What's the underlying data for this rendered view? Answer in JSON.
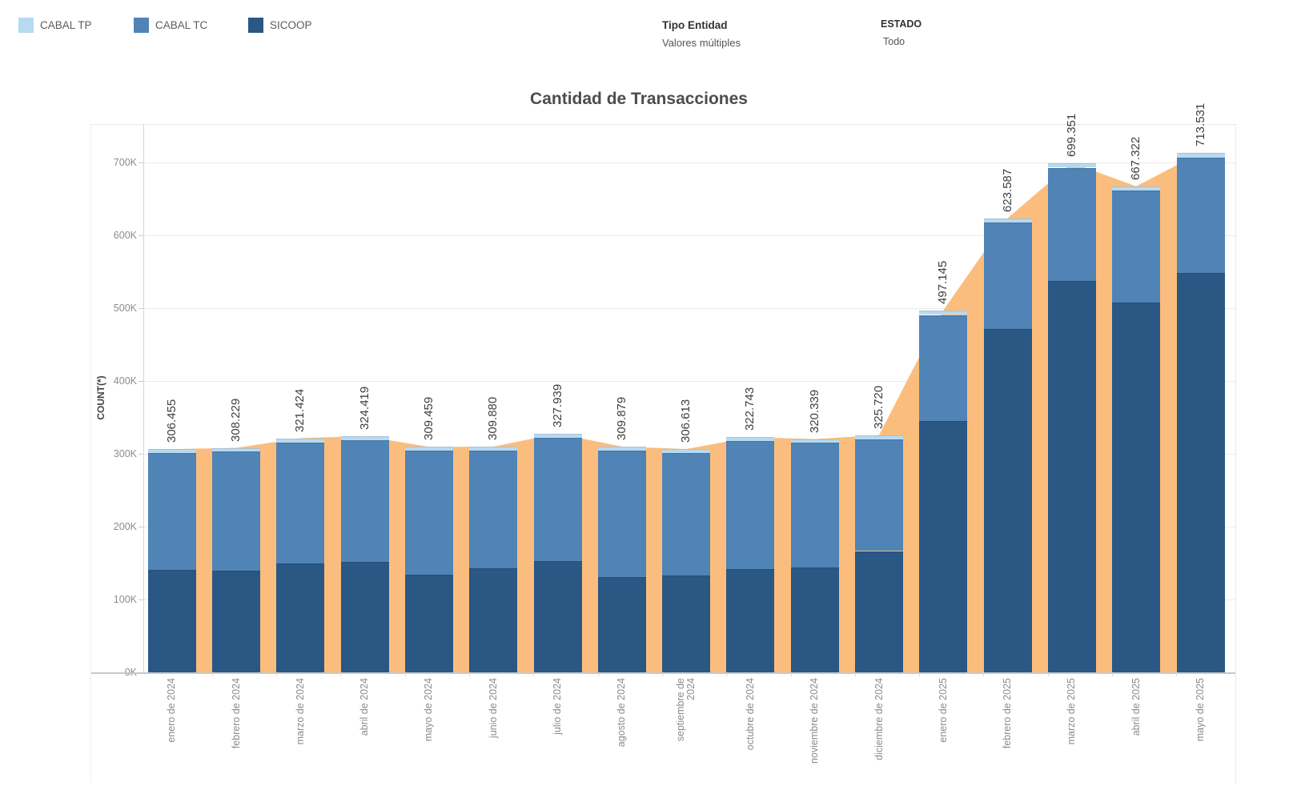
{
  "header": {
    "legend": {
      "items": [
        {
          "label": "CABAL TP",
          "color": "#B6DAF2"
        },
        {
          "label": "CABAL TC",
          "color": "#5083B6"
        },
        {
          "label": "SICOOP",
          "color": "#2A5783"
        }
      ]
    },
    "filters": [
      {
        "title": "Tipo Entidad",
        "value": "Valores múltiples"
      },
      {
        "title": "ESTADO",
        "value": "Todo"
      }
    ]
  },
  "chart_data": {
    "type": "bar",
    "stacked": true,
    "title": "Cantidad de Transacciones",
    "xlabel": "",
    "ylabel": "COUNT(*)",
    "ylim": [
      0,
      752000
    ],
    "yticks": [
      "0K",
      "100K",
      "200K",
      "300K",
      "400K",
      "500K",
      "600K",
      "700K"
    ],
    "ytick_values": [
      0,
      100000,
      200000,
      300000,
      400000,
      500000,
      600000,
      700000
    ],
    "grid": "horizontal light gray",
    "legend_position": "top-left",
    "categories": [
      "enero de 2024",
      "febrero de 2024",
      "marzo de 2024",
      "abril de 2024",
      "mayo de 2024",
      "junio de 2024",
      "julio de 2024",
      "agosto de 2024",
      "septiembre de\n2024",
      "octubre de 2024",
      "noviembre de 2024",
      "diciembre de 2024",
      "enero de 2025",
      "febrero de 2025",
      "marzo de 2025",
      "abril de 2025",
      "mayo de 2025"
    ],
    "stack_order_bottom_to_top": [
      "SICOOP",
      "CABAL TC",
      "CABAL TP"
    ],
    "series": [
      {
        "name": "SICOOP",
        "color": "#2A5783",
        "values": [
          141000,
          140000,
          150000,
          152000,
          134500,
          143000,
          153000,
          131000,
          133400,
          142000,
          144400,
          166500,
          345000,
          472000,
          537000,
          508000,
          548000
        ]
      },
      {
        "name": "CABAL TC",
        "color": "#5083B6",
        "values": [
          160455,
          163229,
          165924,
          166919,
          169959,
          161880,
          169439,
          173879,
          168213,
          175943,
          171139,
          153720,
          145645,
          145587,
          155851,
          153322,
          159031
        ]
      },
      {
        "name": "CABAL TP",
        "color": "#B6DAF2",
        "values": [
          5000,
          5000,
          5500,
          5500,
          5000,
          5000,
          5500,
          5000,
          5000,
          4800,
          4800,
          5500,
          6500,
          6000,
          6500,
          6000,
          6500
        ]
      }
    ],
    "totals": [
      306455,
      308229,
      321424,
      324419,
      309459,
      309880,
      327939,
      309879,
      306613,
      322743,
      320339,
      325720,
      497145,
      623587,
      699351,
      667322,
      713531
    ],
    "total_labels": [
      "306.455",
      "308.229",
      "321.424",
      "324.419",
      "309.459",
      "309.880",
      "327.939",
      "309.879",
      "306.613",
      "322.743",
      "320.339",
      "325.720",
      "497.145",
      "623.587",
      "699.351",
      "667.322",
      "713.531"
    ],
    "area_overlay": {
      "name": "total-area",
      "color": "#FBBD7D",
      "follows": "totals"
    }
  }
}
